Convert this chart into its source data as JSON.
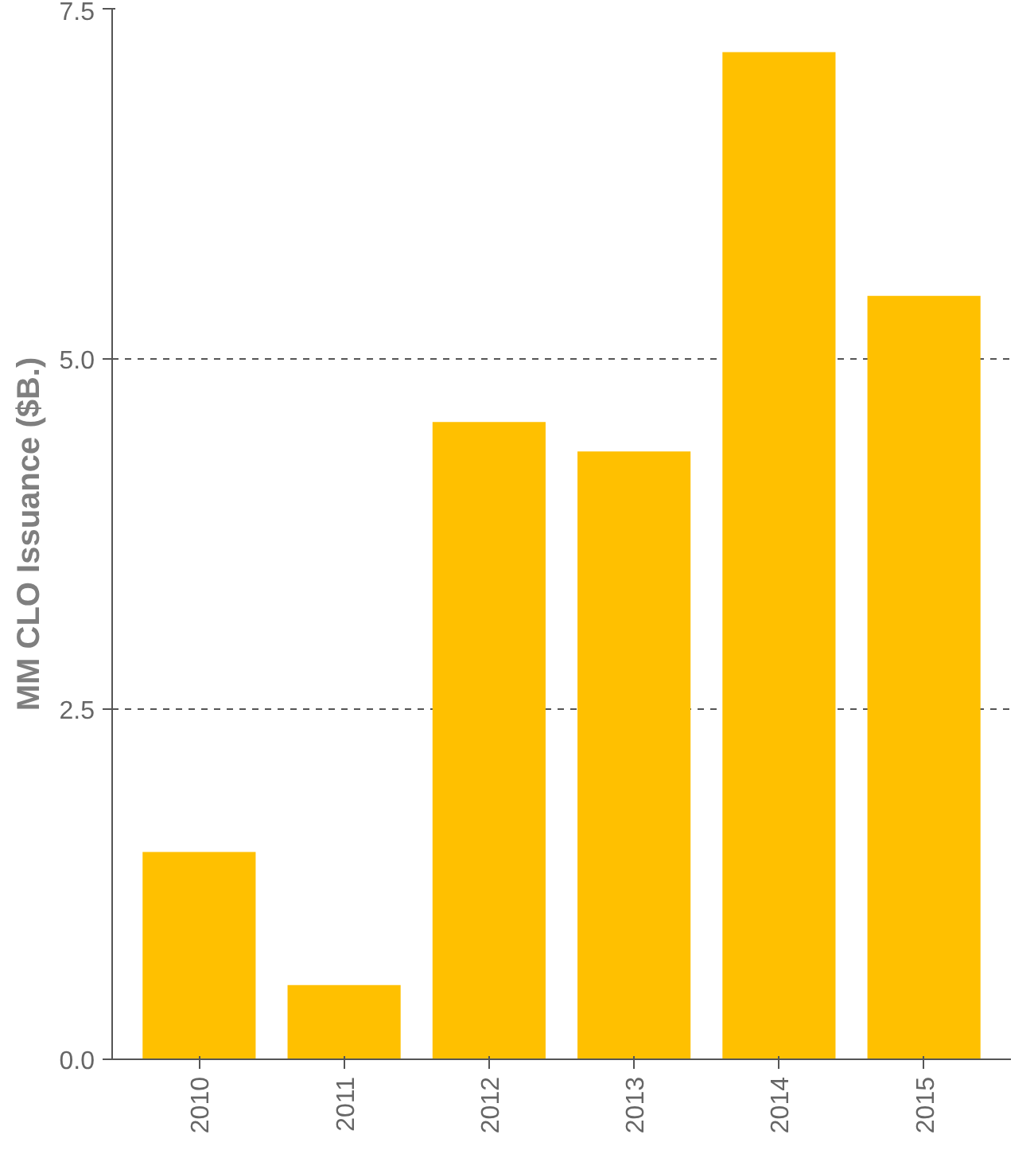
{
  "chart_data": {
    "type": "bar",
    "ylabel": "MM CLO Issuance ($B.)",
    "categories": [
      "2010",
      "2011",
      "2012",
      "2013",
      "2014",
      "2015"
    ],
    "values": [
      1.48,
      0.53,
      4.55,
      4.34,
      7.19,
      5.45
    ],
    "color": "#ffc000",
    "ylim": [
      0,
      7.5
    ],
    "yticks": [
      {
        "value": 0,
        "label": "0.0"
      },
      {
        "value": 2.5,
        "label": "2.5"
      },
      {
        "value": 5,
        "label": "5.0"
      },
      {
        "value": 7.5,
        "label": "7.5"
      }
    ],
    "grid": "y"
  }
}
